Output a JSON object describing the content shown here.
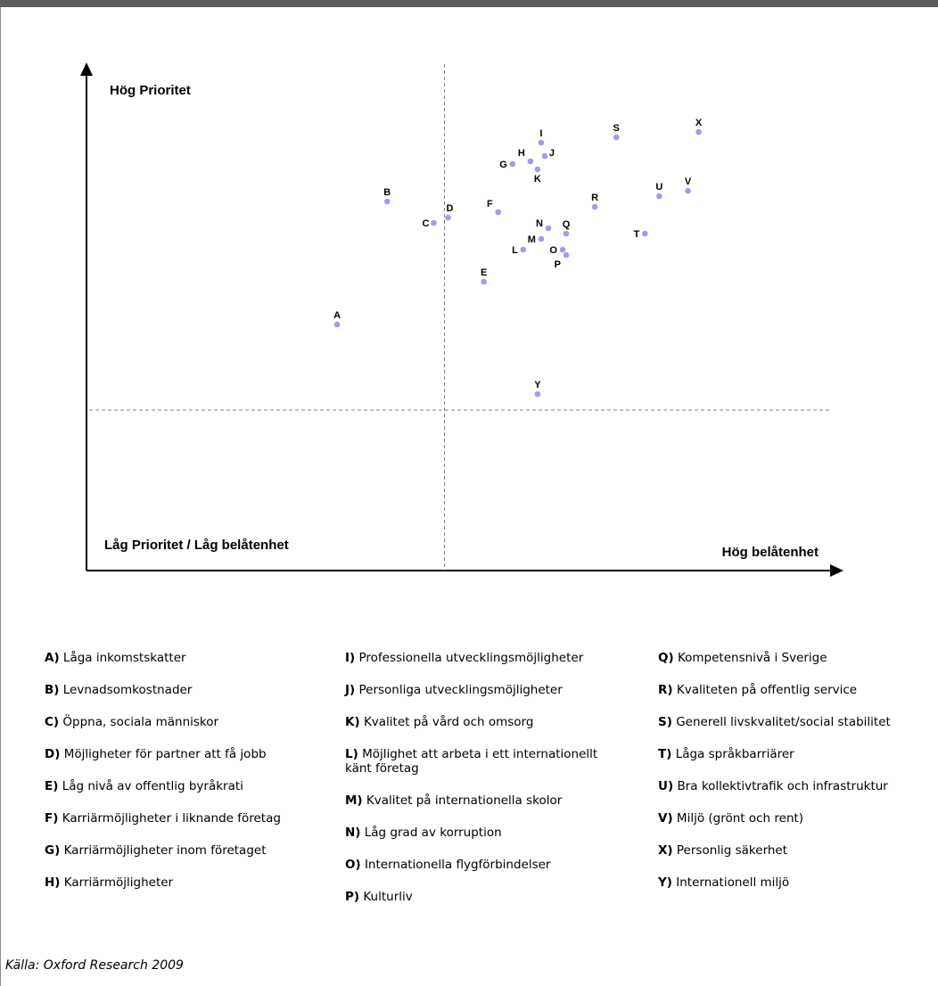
{
  "chart_data": {
    "type": "scatter",
    "corner_labels": {
      "top_left": "Hög Prioritet",
      "bottom_left": "Låg Prioritet / Låg belåtenhet",
      "bottom_right": "Hög belåtenhet"
    },
    "points": [
      {
        "label": "A",
        "x": 3.5,
        "y": 4.6
      },
      {
        "label": "B",
        "x": 4.2,
        "y": 6.9
      },
      {
        "label": "C",
        "x": 4.85,
        "y": 6.5
      },
      {
        "label": "D",
        "x": 5.05,
        "y": 6.6
      },
      {
        "label": "E",
        "x": 5.55,
        "y": 5.4
      },
      {
        "label": "F",
        "x": 5.75,
        "y": 6.7
      },
      {
        "label": "G",
        "x": 5.95,
        "y": 7.6
      },
      {
        "label": "H",
        "x": 6.2,
        "y": 7.65
      },
      {
        "label": "I",
        "x": 6.35,
        "y": 8.0
      },
      {
        "label": "J",
        "x": 6.4,
        "y": 7.75
      },
      {
        "label": "K",
        "x": 6.3,
        "y": 7.5
      },
      {
        "label": "L",
        "x": 6.1,
        "y": 6.0
      },
      {
        "label": "M",
        "x": 6.35,
        "y": 6.2
      },
      {
        "label": "N",
        "x": 6.45,
        "y": 6.4
      },
      {
        "label": "O",
        "x": 6.65,
        "y": 6.0
      },
      {
        "label": "P",
        "x": 6.7,
        "y": 5.9
      },
      {
        "label": "Q",
        "x": 6.7,
        "y": 6.3
      },
      {
        "label": "R",
        "x": 7.1,
        "y": 6.8
      },
      {
        "label": "S",
        "x": 7.4,
        "y": 8.1
      },
      {
        "label": "T",
        "x": 7.8,
        "y": 6.3
      },
      {
        "label": "U",
        "x": 8.0,
        "y": 7.0
      },
      {
        "label": "V",
        "x": 8.4,
        "y": 7.1
      },
      {
        "label": "X",
        "x": 8.55,
        "y": 8.2
      },
      {
        "label": "Y",
        "x": 6.3,
        "y": 3.3
      }
    ],
    "xlim": [
      0,
      10
    ],
    "ylim": [
      0,
      10
    ],
    "divider_x": 5,
    "divider_y": 3,
    "point_color": "#9f9fe6"
  },
  "legend": [
    [
      {
        "key": "A)",
        "text": "Låga inkomstskatter"
      },
      {
        "key": "B)",
        "text": "Levnadsomkostnader"
      },
      {
        "key": "C)",
        "text": "Öppna, sociala människor"
      },
      {
        "key": "D)",
        "text": "Möjligheter för partner att få jobb"
      },
      {
        "key": "E)",
        "text": "Låg nivå av offentlig byråkrati"
      },
      {
        "key": "F)",
        "text": "Karriärmöjligheter i liknande företag"
      },
      {
        "key": "G)",
        "text": "Karriärmöjligheter inom företaget"
      },
      {
        "key": "H)",
        "text": "Karriärmöjligheter"
      }
    ],
    [
      {
        "key": "I)",
        "text": "Professionella utvecklingsmöjligheter"
      },
      {
        "key": "J)",
        "text": "Personliga utvecklingsmöjligheter"
      },
      {
        "key": "K)",
        "text": "Kvalitet på vård och omsorg"
      },
      {
        "key": "L)",
        "text": "Möjlighet att arbeta i ett internationellt känt företag"
      },
      {
        "key": "M)",
        "text": "Kvalitet på internationella skolor"
      },
      {
        "key": "N)",
        "text": "Låg grad av korruption"
      },
      {
        "key": "O)",
        "text": "Internationella flygförbindelser"
      },
      {
        "key": "P)",
        "text": "Kulturliv"
      }
    ],
    [
      {
        "key": "Q)",
        "text": "Kompetensnivå i Sverige"
      },
      {
        "key": "R)",
        "text": "Kvaliteten på offentlig service"
      },
      {
        "key": "S)",
        "text": "Generell livskvalitet/social stabilitet"
      },
      {
        "key": "T)",
        "text": "Låga språkbarriärer"
      },
      {
        "key": "U)",
        "text": "Bra kollektivtrafik och infrastruktur"
      },
      {
        "key": "V)",
        "text": "Miljö (grönt och rent)"
      },
      {
        "key": "X)",
        "text": "Personlig säkerhet"
      },
      {
        "key": "Y)",
        "text": "Internationell miljö"
      }
    ]
  ],
  "source": "Källa: Oxford Research 2009"
}
